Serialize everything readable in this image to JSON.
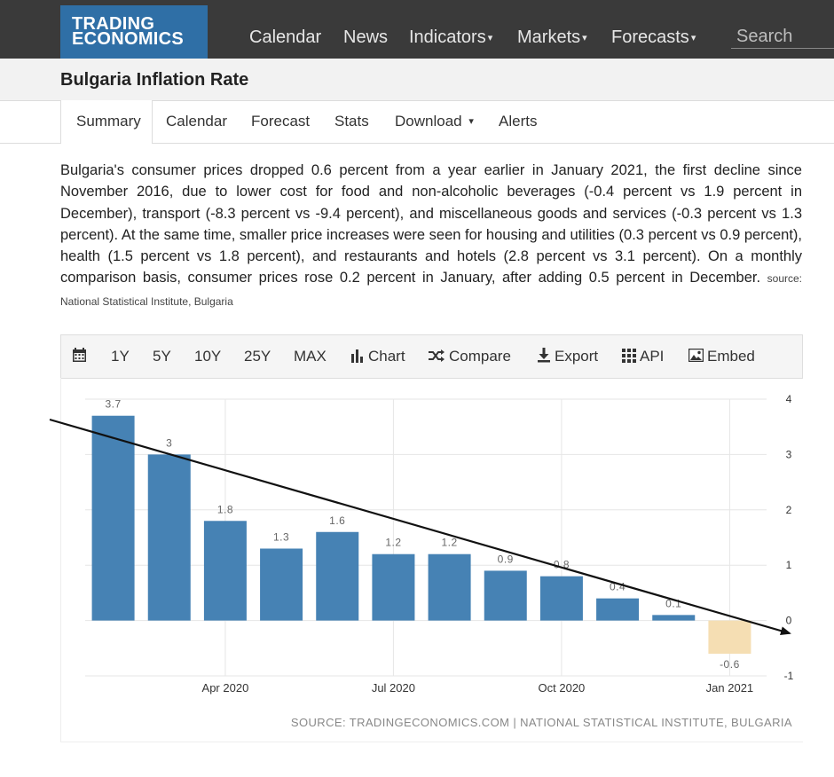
{
  "brand": {
    "line1": "TRADING",
    "line2": "ECONOMICS"
  },
  "nav": {
    "calendar": "Calendar",
    "news": "News",
    "indicators": "Indicators",
    "markets": "Markets",
    "forecasts": "Forecasts",
    "caret": "▾",
    "search_placeholder": "Search"
  },
  "page_title": "Bulgaria Inflation Rate",
  "tabs": {
    "summary": "Summary",
    "calendar": "Calendar",
    "forecast": "Forecast",
    "stats": "Stats",
    "download": "Download",
    "alerts": "Alerts"
  },
  "description": {
    "text": "Bulgaria's consumer prices dropped 0.6 percent from a year earlier in January 2021, the first decline since November 2016, due to lower cost for food and non-alcoholic beverages (-0.4 percent vs 1.9 percent in December), transport (-8.3 percent vs -9.4 percent), and miscellaneous goods and services (-0.3 percent vs 1.3 percent). At the same time, smaller price increases were seen for housing and utilities (0.3 percent vs 0.9 percent), health (1.5 percent vs 1.8 percent), and restaurants and hotels (2.8 percent vs 3.1 percent). On a monthly comparison basis, consumer prices rose 0.2 percent in January, after adding 0.5 percent in December.",
    "source": "source: National Statistical Institute, Bulgaria"
  },
  "toolbar": {
    "r1y": "1Y",
    "r5y": "5Y",
    "r10y": "10Y",
    "r25y": "25Y",
    "rmax": "MAX",
    "chart": "Chart",
    "compare": "Compare",
    "export": "Export",
    "api": "API",
    "embed": "Embed"
  },
  "chart_source": "SOURCE: TRADINGECONOMICS.COM | NATIONAL STATISTICAL INSTITUTE, BULGARIA",
  "colors": {
    "positive": "#4682b4",
    "negative": "#f5deb3",
    "topbar": "#3a3a3a",
    "logo": "#2f6fa6"
  },
  "chart_data": {
    "type": "bar",
    "categories": [
      "Feb 2020",
      "Mar 2020",
      "Apr 2020",
      "May 2020",
      "Jun 2020",
      "Jul 2020",
      "Aug 2020",
      "Sep 2020",
      "Oct 2020",
      "Nov 2020",
      "Dec 2020",
      "Jan 2021"
    ],
    "values": [
      3.7,
      3.0,
      1.8,
      1.3,
      1.6,
      1.2,
      1.2,
      0.9,
      0.8,
      0.4,
      0.1,
      -0.6
    ],
    "value_labels": [
      "3.7",
      "3",
      "1.8",
      "1.3",
      "1.6",
      "1.2",
      "1.2",
      "0.9",
      "0.8",
      "0.4",
      "0.1",
      "-0.6"
    ],
    "x_tick_labels": [
      {
        "label": "Apr 2020",
        "category": "Apr 2020"
      },
      {
        "label": "Jul 2020",
        "category": "Jul 2020"
      },
      {
        "label": "Oct 2020",
        "category": "Oct 2020"
      },
      {
        "label": "Jan 2021",
        "category": "Jan 2021"
      }
    ],
    "y_ticks": [
      4,
      3,
      2,
      1,
      0,
      -1
    ],
    "ylim": [
      -1,
      4
    ],
    "y_axis_side": "right",
    "grid": true,
    "annotation": "downward trend arrow drawn from Feb 2020 high toward Jan 2021"
  }
}
